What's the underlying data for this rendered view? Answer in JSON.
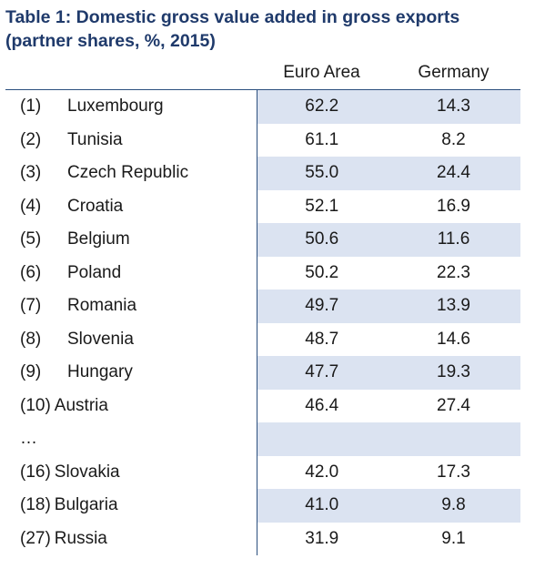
{
  "table": {
    "title": "Table 1: Domestic gross value added in gross exports (partner shares, %, 2015)",
    "columns": [
      "",
      "Euro Area",
      "Germany"
    ],
    "rows": [
      {
        "rank": "(1)",
        "country": "Luxembourg",
        "euro_area": "62.2",
        "germany": "14.3"
      },
      {
        "rank": "(2)",
        "country": "Tunisia",
        "euro_area": "61.1",
        "germany": "8.2"
      },
      {
        "rank": "(3)",
        "country": "Czech Republic",
        "euro_area": "55.0",
        "germany": "24.4"
      },
      {
        "rank": "(4)",
        "country": "Croatia",
        "euro_area": "52.1",
        "germany": "16.9"
      },
      {
        "rank": "(5)",
        "country": "Belgium",
        "euro_area": "50.6",
        "germany": "11.6"
      },
      {
        "rank": "(6)",
        "country": "Poland",
        "euro_area": "50.2",
        "germany": "22.3"
      },
      {
        "rank": "(7)",
        "country": "Romania",
        "euro_area": "49.7",
        "germany": "13.9"
      },
      {
        "rank": "(8)",
        "country": "Slovenia",
        "euro_area": "48.7",
        "germany": "14.6"
      },
      {
        "rank": "(9)",
        "country": "Hungary",
        "euro_area": "47.7",
        "germany": "19.3"
      },
      {
        "rank": "(10)",
        "country": "Austria",
        "euro_area": "46.4",
        "germany": "27.4"
      },
      {
        "rank": "",
        "country": "…",
        "euro_area": "",
        "germany": ""
      },
      {
        "rank": "(16)",
        "country": "Slovakia",
        "euro_area": "42.0",
        "germany": "17.3"
      },
      {
        "rank": "(18)",
        "country": "Bulgaria",
        "euro_area": "41.0",
        "germany": "9.8"
      },
      {
        "rank": "(27)",
        "country": "Russia",
        "euro_area": "31.9",
        "germany": "9.1"
      }
    ]
  }
}
